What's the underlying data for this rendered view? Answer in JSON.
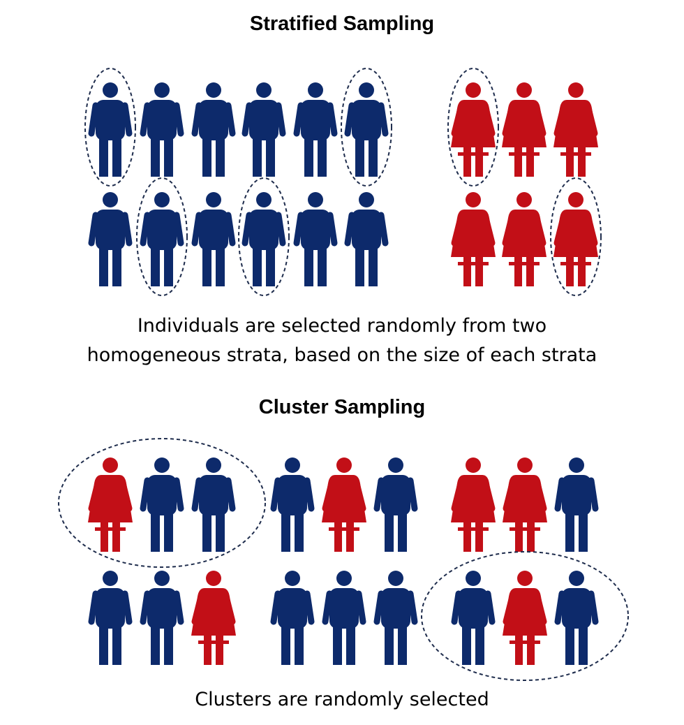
{
  "colors": {
    "male": "#0d2a6b",
    "female": "#c20f17",
    "selection": "#1f2d4d"
  },
  "icons": {
    "male": "man-icon",
    "female": "woman-icon"
  },
  "stratified": {
    "title": "Stratified Sampling",
    "caption": [
      "Individuals are selected randomly from two",
      "homogeneous strata, based on the size of each strata"
    ],
    "groups": [
      {
        "name": "male-stratum",
        "rows": [
          [
            "male",
            "male",
            "male",
            "male",
            "male",
            "male"
          ],
          [
            "male",
            "male",
            "male",
            "male",
            "male",
            "male"
          ]
        ],
        "selected": [
          [
            0,
            0
          ],
          [
            0,
            5
          ],
          [
            1,
            1
          ],
          [
            1,
            3
          ]
        ]
      },
      {
        "name": "female-stratum",
        "rows": [
          [
            "female",
            "female",
            "female"
          ],
          [
            "female",
            "female",
            "female"
          ]
        ],
        "selected": [
          [
            0,
            0
          ],
          [
            1,
            2
          ]
        ]
      }
    ]
  },
  "cluster": {
    "title": "Cluster Sampling",
    "caption": [
      "Clusters are randomly selected"
    ],
    "clusters": [
      {
        "members": [
          "female",
          "male",
          "male"
        ],
        "selected": true
      },
      {
        "members": [
          "male",
          "female",
          "male"
        ],
        "selected": false
      },
      {
        "members": [
          "female",
          "female",
          "male"
        ],
        "selected": false
      },
      {
        "members": [
          "male",
          "male",
          "female"
        ],
        "selected": false
      },
      {
        "members": [
          "male",
          "male",
          "male"
        ],
        "selected": false
      },
      {
        "members": [
          "male",
          "female",
          "male"
        ],
        "selected": true
      }
    ]
  }
}
